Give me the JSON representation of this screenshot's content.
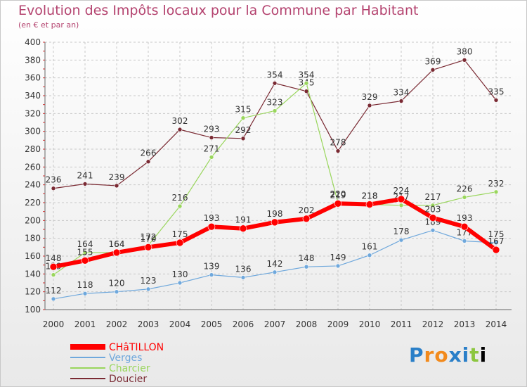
{
  "header": {
    "title": "Evolution des Impôts locaux pour la Commune par Habitant",
    "subtitle": "(en € et par an)"
  },
  "logo_text": "Proxiti",
  "colors": {
    "title": "#b4436f",
    "chatillon": "#ff0000",
    "verges": "#6fa8dc",
    "charcier": "#99d65c",
    "doucier": "#7a2a33",
    "grid": "#c8c8c8"
  },
  "chart_data": {
    "type": "line",
    "x": [
      "2000",
      "2001",
      "2002",
      "2003",
      "2004",
      "2005",
      "2006",
      "2007",
      "2008",
      "2009",
      "2010",
      "2011",
      "2012",
      "2013",
      "2014"
    ],
    "ylim": [
      100,
      400
    ],
    "yticks": [
      100,
      120,
      140,
      160,
      180,
      200,
      220,
      240,
      260,
      280,
      300,
      320,
      340,
      360,
      380,
      400
    ],
    "grid": true,
    "legend_position": "bottom-left",
    "series": [
      {
        "name": "Doucier",
        "values": [
          236,
          241,
          239,
          266,
          302,
          293,
          292,
          354,
          345,
          278,
          329,
          334,
          369,
          380,
          335
        ]
      },
      {
        "name": "Charcier",
        "values": [
          139,
          164,
          164,
          172,
          216,
          271,
          315,
          323,
          354,
          220,
          218,
          217,
          217,
          226,
          232
        ]
      },
      {
        "name": "Verges",
        "values": [
          112,
          118,
          120,
          123,
          130,
          139,
          136,
          142,
          148,
          149,
          161,
          178,
          189,
          177,
          175
        ]
      },
      {
        "name": "CHâTILLON",
        "values": [
          148,
          155,
          164,
          170,
          175,
          193,
          191,
          198,
          202,
          219,
          218,
          224,
          203,
          193,
          167
        ]
      }
    ]
  }
}
